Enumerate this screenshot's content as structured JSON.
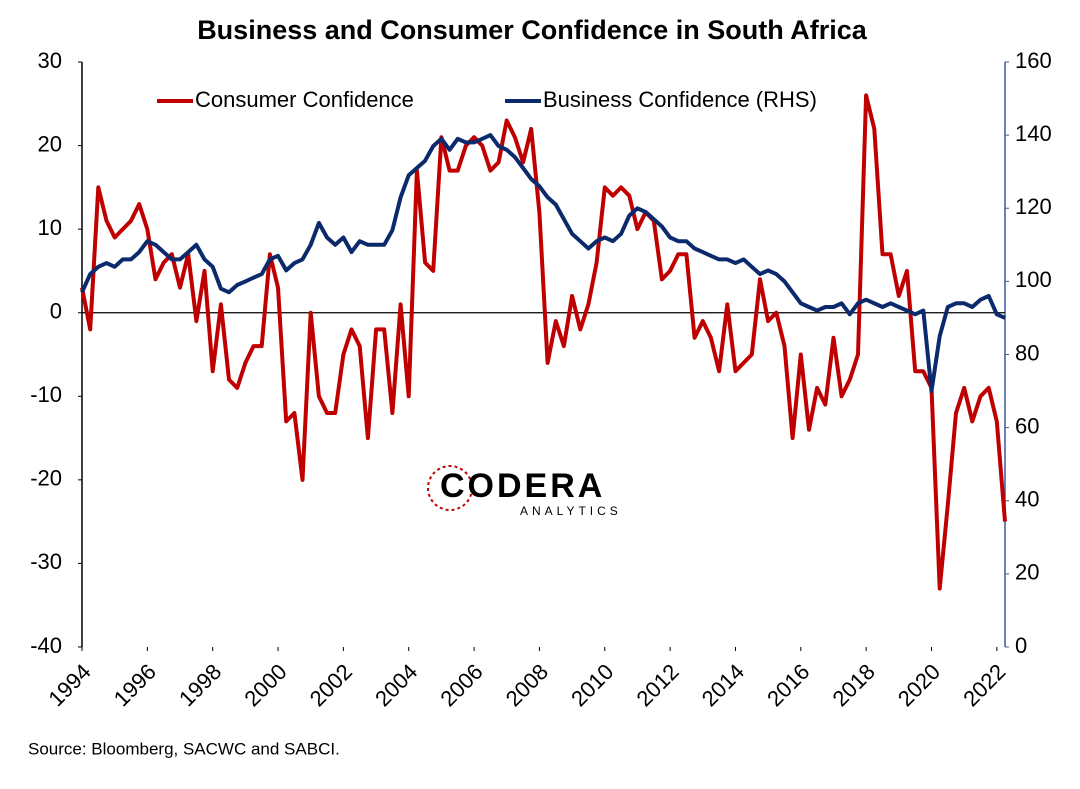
{
  "chart_data": {
    "type": "line",
    "title": "Business and Consumer Confidence in South Africa",
    "source": "Source: Bloomberg, SACWC and SABCI.",
    "logo": {
      "name": "CODERA",
      "sub": "ANALYTICS"
    },
    "legend": "top",
    "xlim": [
      1994,
      2022.25
    ],
    "xticks": [
      1994,
      1996,
      1998,
      2000,
      2002,
      2004,
      2006,
      2008,
      2010,
      2012,
      2014,
      2016,
      2018,
      2020,
      2022
    ],
    "ylim": [
      -40,
      30
    ],
    "yticks": [
      -40,
      -30,
      -20,
      -10,
      0,
      10,
      20,
      30
    ],
    "y2lim": [
      0,
      160
    ],
    "y2ticks": [
      0,
      20,
      40,
      60,
      80,
      100,
      120,
      140,
      160
    ],
    "x": [
      1994,
      1994.25,
      1994.5,
      1994.75,
      1995,
      1995.25,
      1995.5,
      1995.75,
      1996,
      1996.25,
      1996.5,
      1996.75,
      1997,
      1997.25,
      1997.5,
      1997.75,
      1998,
      1998.25,
      1998.5,
      1998.75,
      1999,
      1999.25,
      1999.5,
      1999.75,
      2000,
      2000.25,
      2000.5,
      2000.75,
      2001,
      2001.25,
      2001.5,
      2001.75,
      2002,
      2002.25,
      2002.5,
      2002.75,
      2003,
      2003.25,
      2003.5,
      2003.75,
      2004,
      2004.25,
      2004.5,
      2004.75,
      2005,
      2005.25,
      2005.5,
      2005.75,
      2006,
      2006.25,
      2006.5,
      2006.75,
      2007,
      2007.25,
      2007.5,
      2007.75,
      2008,
      2008.25,
      2008.5,
      2008.75,
      2009,
      2009.25,
      2009.5,
      2009.75,
      2010,
      2010.25,
      2010.5,
      2010.75,
      2011,
      2011.25,
      2011.5,
      2011.75,
      2012,
      2012.25,
      2012.5,
      2012.75,
      2013,
      2013.25,
      2013.5,
      2013.75,
      2014,
      2014.25,
      2014.5,
      2014.75,
      2015,
      2015.25,
      2015.5,
      2015.75,
      2016,
      2016.25,
      2016.5,
      2016.75,
      2017,
      2017.25,
      2017.5,
      2017.75,
      2018,
      2018.25,
      2018.5,
      2018.75,
      2019,
      2019.25,
      2019.5,
      2019.75,
      2020,
      2020.25,
      2020.5,
      2020.75,
      2021,
      2021.25,
      2021.5,
      2021.75,
      2022,
      2022.25
    ],
    "series": [
      {
        "name": "Consumer Confidence",
        "color": "#c00000",
        "values": [
          3,
          -2,
          15,
          11,
          9,
          10,
          11,
          13,
          10,
          4,
          6,
          7,
          3,
          7,
          -1,
          5,
          -7,
          1,
          -8,
          -9,
          -6,
          -4,
          -4,
          7,
          3,
          -13,
          -12,
          -20,
          0,
          -10,
          -12,
          -12,
          -5,
          -2,
          -4,
          -15,
          -2,
          -2,
          -12,
          1,
          -10,
          17,
          6,
          5,
          21,
          17,
          17,
          20,
          21,
          20,
          17,
          18,
          23,
          21,
          18,
          22,
          12,
          -6,
          -1,
          -4,
          2,
          -2,
          1,
          6,
          15,
          14,
          15,
          14,
          10,
          12,
          11,
          4,
          5,
          7,
          7,
          -3,
          -1,
          -3,
          -7,
          1,
          -7,
          -6,
          -5,
          4,
          -1,
          0,
          -4,
          -15,
          -5,
          -14,
          -9,
          -11,
          -3,
          -10,
          -8,
          -5,
          26,
          22,
          7,
          7,
          2,
          5,
          -7,
          -7,
          -9,
          -33,
          -23,
          -12,
          -9,
          -13,
          -10,
          -9,
          -13,
          -25
        ]
      },
      {
        "name": "Business Confidence (RHS)",
        "color": "#0b2a6b",
        "axis": "y2",
        "values": [
          97,
          102,
          104,
          105,
          104,
          106,
          106,
          108,
          111,
          110,
          108,
          106,
          106,
          108,
          110,
          106,
          104,
          98,
          97,
          99,
          100,
          101,
          102,
          106,
          107,
          103,
          105,
          106,
          110,
          116,
          112,
          110,
          112,
          108,
          111,
          110,
          110,
          110,
          114,
          123,
          129,
          131,
          133,
          137,
          139,
          136,
          139,
          138,
          138,
          139,
          140,
          137,
          136,
          134,
          131,
          128,
          126,
          123,
          121,
          117,
          113,
          111,
          109,
          111,
          112,
          111,
          113,
          118,
          120,
          119,
          117,
          115,
          112,
          111,
          111,
          109,
          108,
          107,
          106,
          106,
          105,
          106,
          104,
          102,
          103,
          102,
          100,
          97,
          94,
          93,
          92,
          93,
          93,
          94,
          91,
          94,
          95,
          94,
          93,
          94,
          93,
          92,
          91,
          92,
          70,
          85,
          93,
          94,
          94,
          93,
          95,
          96,
          91,
          90
        ]
      }
    ]
  }
}
